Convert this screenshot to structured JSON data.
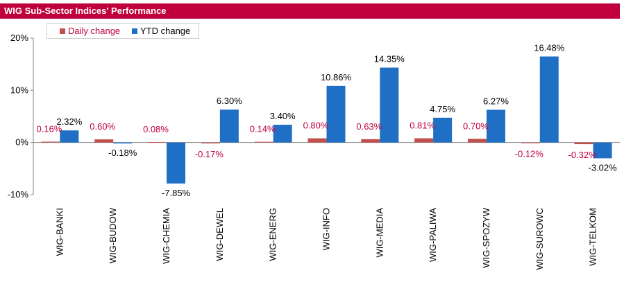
{
  "header": {
    "title": "WIG Sub-Sector Indices' Performance"
  },
  "colors": {
    "title_bar": "#c0003c",
    "daily": "#c0504d",
    "ytd": "#1f6fc5",
    "daily_label": "#c0003c",
    "ytd_label": "#000000"
  },
  "chart_data": {
    "type": "bar",
    "title": "",
    "xlabel": "",
    "ylabel": "",
    "ylim": [
      -10,
      20
    ],
    "yticks": [
      "-10%",
      "0%",
      "10%",
      "20%"
    ],
    "ytick_values": [
      -10,
      0,
      10,
      20
    ],
    "grid": false,
    "legend": "top-left",
    "categories": [
      "WIG-BANKI",
      "WIG-BUDOW",
      "WIG-CHEMIA",
      "WIG-DEWEL",
      "WIG-ENERG",
      "WIG-INFO",
      "WIG-MEDIA",
      "WIG-PALIWA",
      "WIG-SPOZYW",
      "WIG-SUROWC",
      "WIG-TELKOM"
    ],
    "series": [
      {
        "name": "Daily change",
        "values": [
          0.16,
          0.6,
          0.08,
          -0.17,
          0.14,
          0.8,
          0.63,
          0.81,
          0.7,
          -0.12,
          -0.32
        ],
        "labels": [
          "0.16%",
          "0.60%",
          "0.08%",
          "-0.17%",
          "0.14%",
          "0.80%",
          "0.63%",
          "0.81%",
          "0.70%",
          "-0.12%",
          "-0.32%"
        ]
      },
      {
        "name": "YTD change",
        "values": [
          2.32,
          -0.18,
          -7.85,
          6.3,
          3.4,
          10.86,
          14.35,
          4.75,
          6.27,
          16.48,
          -3.02
        ],
        "labels": [
          "2.32%",
          "-0.18%",
          "-7.85%",
          "6.30%",
          "3.40%",
          "10.86%",
          "14.35%",
          "4.75%",
          "6.27%",
          "16.48%",
          "-3.02%"
        ]
      }
    ]
  }
}
